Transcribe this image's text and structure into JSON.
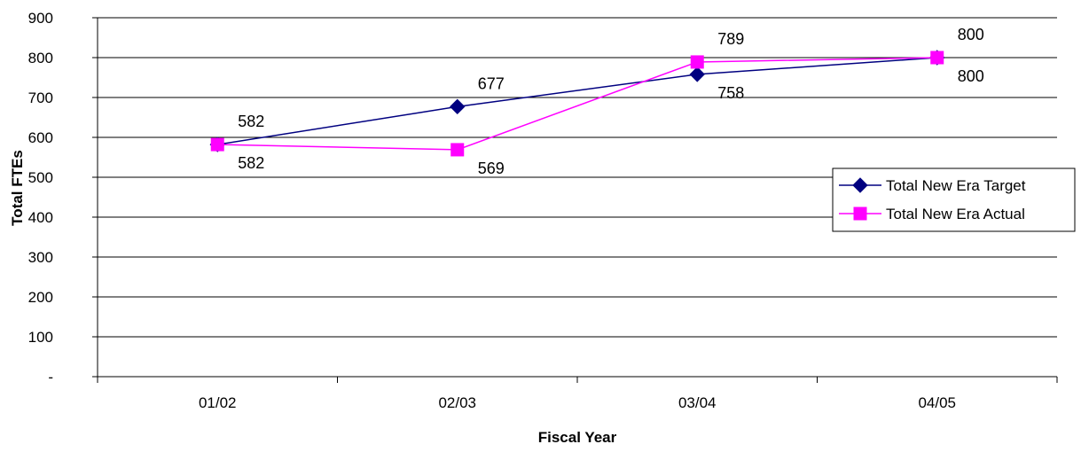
{
  "chart_data": {
    "type": "line",
    "title": "",
    "xlabel": "Fiscal Year",
    "ylabel": "Total FTEs",
    "categories": [
      "01/02",
      "02/03",
      "03/04",
      "04/05"
    ],
    "ylim": [
      0,
      900
    ],
    "yticks": [
      0,
      100,
      200,
      300,
      400,
      500,
      600,
      700,
      800,
      900
    ],
    "ytick_labels": [
      "-",
      "100",
      "200",
      "300",
      "400",
      "500",
      "600",
      "700",
      "800",
      "900"
    ],
    "grid": true,
    "legend_position": "right",
    "series": [
      {
        "name": "Total New Era Target",
        "values": [
          582,
          677,
          758,
          800
        ],
        "color": "#000080",
        "marker": "diamond",
        "labels": [
          "582",
          "677",
          "758",
          "800"
        ]
      },
      {
        "name": "Total New Era Actual",
        "values": [
          582,
          569,
          789,
          800
        ],
        "color": "#ff00ff",
        "marker": "square",
        "labels": [
          "582",
          "569",
          "789",
          "800"
        ]
      }
    ]
  }
}
